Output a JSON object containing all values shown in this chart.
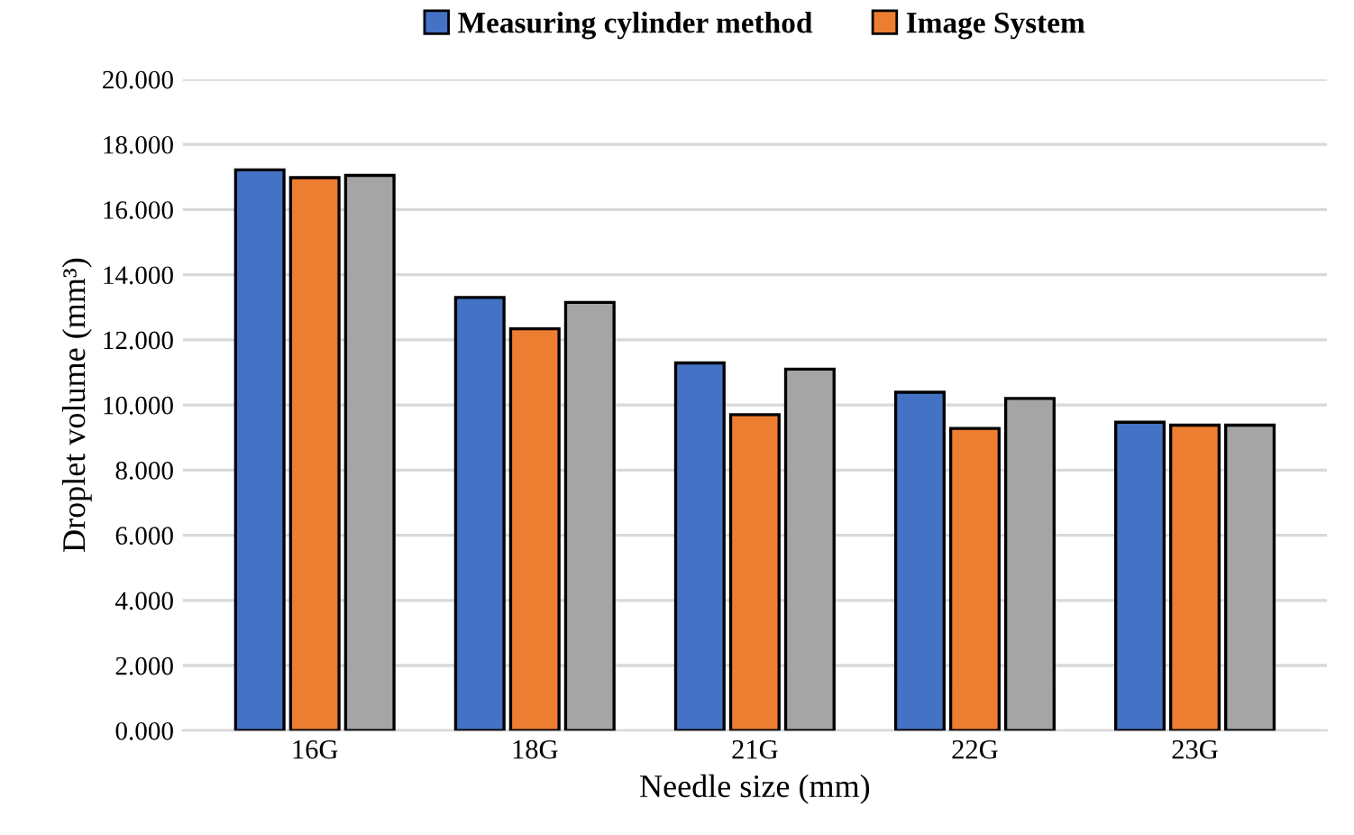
{
  "chart_data": {
    "type": "bar",
    "xlabel": "Needle size (mm)",
    "ylabel": "Droplet volume (mm³)",
    "categories": [
      "16G",
      "18G",
      "21G",
      "22G",
      "23G"
    ],
    "series": [
      {
        "name": "Measuring cylinder method",
        "color": "#4472c4",
        "values": [
          17.22,
          13.3,
          11.29,
          10.39,
          9.47
        ]
      },
      {
        "name": "Image System",
        "color": "#ed7d31",
        "values": [
          16.98,
          12.34,
          9.7,
          9.28,
          9.38
        ]
      },
      {
        "color": "#a5a5a5",
        "values": [
          17.05,
          13.15,
          11.1,
          10.2,
          9.38
        ]
      }
    ],
    "ylim": [
      0,
      20
    ],
    "yticks": [
      {
        "value": 0,
        "label": "0.000"
      },
      {
        "value": 2,
        "label": "2.000"
      },
      {
        "value": 4,
        "label": "4.000"
      },
      {
        "value": 6,
        "label": "6.000"
      },
      {
        "value": 8,
        "label": "8.000"
      },
      {
        "value": 10,
        "label": "10.000"
      },
      {
        "value": 12,
        "label": "12.000"
      },
      {
        "value": 14,
        "label": "14.000"
      },
      {
        "value": 16,
        "label": "16.000"
      },
      {
        "value": 18,
        "label": "18.000"
      },
      {
        "value": 20,
        "label": "20.000"
      }
    ],
    "grid": "y",
    "legend": "top"
  }
}
